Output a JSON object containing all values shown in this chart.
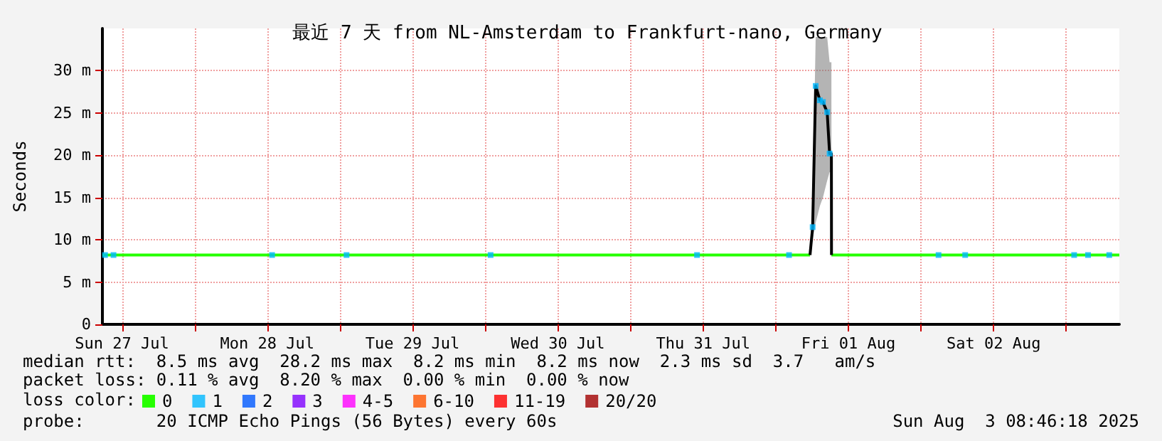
{
  "chart_data": {
    "type": "line",
    "title": "最近 7 天 from NL-Amsterdam to Frankfurt-nano, Germany",
    "ylabel": "Seconds",
    "legend_title": "loss color:",
    "xlim": [
      "2025-07-27T08:46",
      "2025-08-03T08:46"
    ],
    "xticks": [
      {
        "value": "2025-07-27T12:00",
        "label": "Sun 27 Jul"
      },
      {
        "value": "2025-07-28T00:00",
        "label": null
      },
      {
        "value": "2025-07-28T12:00",
        "label": "Mon 28 Jul"
      },
      {
        "value": "2025-07-29T00:00",
        "label": null
      },
      {
        "value": "2025-07-29T12:00",
        "label": "Tue 29 Jul"
      },
      {
        "value": "2025-07-30T00:00",
        "label": null
      },
      {
        "value": "2025-07-30T12:00",
        "label": "Wed 30 Jul"
      },
      {
        "value": "2025-07-31T00:00",
        "label": null
      },
      {
        "value": "2025-07-31T12:00",
        "label": "Thu 31 Jul"
      },
      {
        "value": "2025-08-01T00:00",
        "label": null
      },
      {
        "value": "2025-08-01T12:00",
        "label": "Fri 01 Aug"
      },
      {
        "value": "2025-08-02T00:00",
        "label": null
      },
      {
        "value": "2025-08-02T12:00",
        "label": "Sat 02 Aug"
      },
      {
        "value": "2025-08-03T00:00",
        "label": null
      }
    ],
    "ylim": [
      0,
      35
    ],
    "yticks": [
      0,
      {
        "value": 5,
        "label": "5 m"
      },
      {
        "value": 10,
        "label": "10 m"
      },
      {
        "value": 15,
        "label": "15 m"
      },
      {
        "value": 20,
        "label": "20 m"
      },
      {
        "value": 25,
        "label": "25 m"
      },
      {
        "value": 30,
        "label": "30 m"
      }
    ],
    "grid": true,
    "legend": "bottom left",
    "line_style": "solid",
    "series": [
      {
        "name": "0",
        "color": "#26ff00",
        "x": [
          "2025-07-27T08:46",
          "2025-08-01T05:40",
          "2025-08-01T07:00",
          "2025-08-01T09:12",
          "2025-08-03T08:46"
        ],
        "values": [
          8.2,
          8.2,
          null,
          8.2,
          8.2
        ]
      },
      {
        "color": "#000000",
        "x": [
          "2025-08-01T05:40",
          "2025-08-01T06:06",
          "2025-08-01T06:36",
          "2025-08-01T07:18",
          "2025-08-01T07:48",
          "2025-08-01T08:30",
          "2025-08-01T08:54",
          "2025-08-01T09:12",
          "2025-08-01T09:13"
        ],
        "values": [
          8.2,
          11.5,
          28.2,
          26.5,
          26.3,
          25.1,
          20.2,
          20.2,
          8.2
        ],
        "lower": [
          8.2,
          10,
          12,
          14,
          15,
          17,
          18,
          18,
          8.2
        ],
        "upper": [
          8.2,
          14,
          34,
          34,
          34,
          34,
          31,
          31,
          8.2
        ]
      },
      {
        "name": "1",
        "type": "scatter",
        "color": "#00b8ff",
        "x": [
          "2025-07-27T09:12",
          "2025-07-27T10:36",
          "2025-07-28T12:48",
          "2025-07-29T01:06",
          "2025-07-30T00:54",
          "2025-07-31T11:00",
          "2025-08-01T02:12",
          "2025-08-01T06:06",
          "2025-08-01T06:36",
          "2025-08-01T07:18",
          "2025-08-01T07:48",
          "2025-08-01T08:30",
          "2025-08-01T08:54",
          "2025-08-02T02:54",
          "2025-08-02T07:18",
          "2025-08-03T01:18",
          "2025-08-03T03:36",
          "2025-08-03T07:06"
        ],
        "values": [
          8.2,
          8.2,
          8.2,
          8.2,
          8.2,
          8.2,
          8.2,
          11.5,
          28.2,
          26.5,
          26.3,
          25.1,
          20.2,
          8.2,
          8.2,
          8.2,
          8.2,
          8.2
        ]
      },
      {
        "name": "2",
        "type": "scatter",
        "color": "#0059ff"
      },
      {
        "name": "3",
        "type": "scatter",
        "color": "#7e00ff"
      },
      {
        "name": "4-5",
        "type": "scatter",
        "color": "#ff00ff"
      },
      {
        "name": "6-10",
        "type": "scatter",
        "color": "#ff5500"
      },
      {
        "name": "11-19",
        "type": "scatter",
        "color": "#ff0000"
      },
      {
        "name": "20/20",
        "type": "scatter",
        "color": "#a10000"
      }
    ],
    "annotations": [
      "median rtt:  8.5 ms avg  28.2 ms max  8.2 ms min  8.2 ms now  2.3 ms sd  3.7   am/s",
      "packet loss: 0.11 % avg  8.20 % max  0.00 % min  0.00 % now",
      "probe:       20 ICMP Echo Pings (56 Bytes) every 60s",
      "Sun Aug  3 08:46:18 2025"
    ]
  }
}
